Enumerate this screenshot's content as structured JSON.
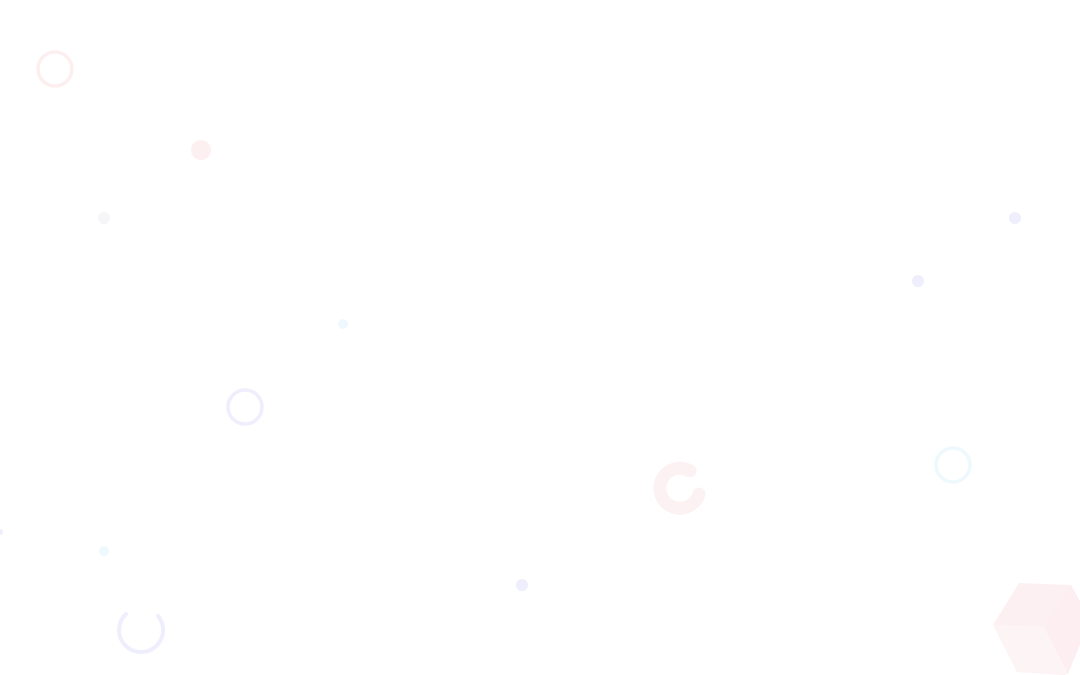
{
  "background": {
    "color": "#ffffff",
    "colors": {
      "pink": "#fdeff0",
      "lavender": "#efeefd",
      "cyan": "#eef9fd",
      "gray": "#f6f6f8"
    }
  }
}
